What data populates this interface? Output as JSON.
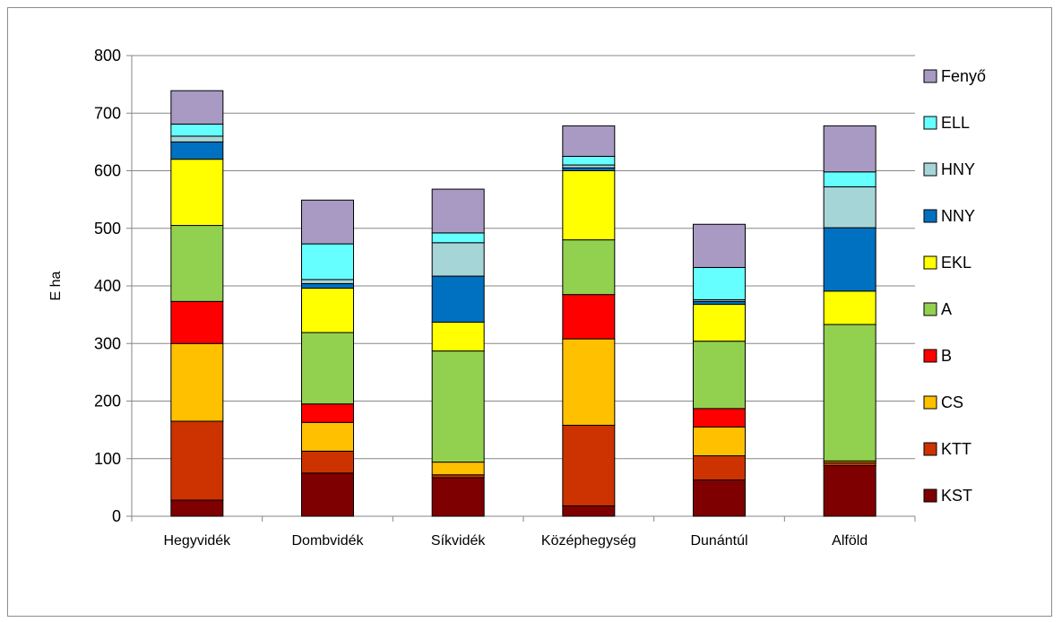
{
  "chart_data": {
    "type": "bar",
    "stacked": true,
    "ylabel": "E ha",
    "ylim": [
      0,
      800
    ],
    "yticks": [
      0,
      100,
      200,
      300,
      400,
      500,
      600,
      700,
      800
    ],
    "grid": true,
    "legend_position": "right",
    "categories": [
      "Hegyvidék",
      "Dombvidék",
      "Síkvidék",
      "Középhegység",
      "Dunántúl",
      "Alföld"
    ],
    "series": [
      {
        "name": "KST",
        "color": "#7f0000",
        "values": [
          28,
          75,
          67,
          18,
          63,
          88
        ]
      },
      {
        "name": "KTT",
        "color": "#cc3300",
        "values": [
          137,
          38,
          5,
          140,
          42,
          5
        ]
      },
      {
        "name": "CS",
        "color": "#ffc000",
        "values": [
          135,
          50,
          22,
          150,
          50,
          3
        ]
      },
      {
        "name": "B",
        "color": "#ff0000",
        "values": [
          73,
          32,
          0,
          77,
          32,
          0
        ]
      },
      {
        "name": "A",
        "color": "#92d050",
        "values": [
          132,
          124,
          193,
          95,
          117,
          237
        ]
      },
      {
        "name": "EKL",
        "color": "#ffff00",
        "values": [
          115,
          77,
          50,
          120,
          64,
          58
        ]
      },
      {
        "name": "NNY",
        "color": "#0070c0",
        "values": [
          30,
          8,
          80,
          5,
          5,
          110
        ]
      },
      {
        "name": "HNY",
        "color": "#a6d5d8",
        "values": [
          10,
          7,
          58,
          5,
          3,
          71
        ]
      },
      {
        "name": "ELL",
        "color": "#66ffff",
        "values": [
          21,
          62,
          17,
          15,
          56,
          26
        ]
      },
      {
        "name": "Fenyő",
        "color": "#a89ac2",
        "values": [
          58,
          76,
          76,
          53,
          75,
          80
        ]
      }
    ]
  }
}
